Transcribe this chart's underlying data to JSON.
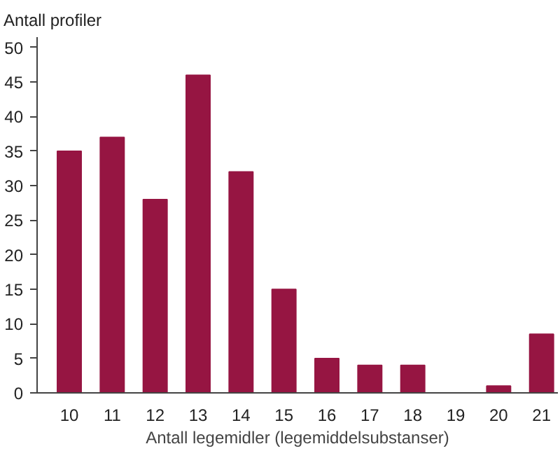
{
  "chart_data": {
    "type": "bar",
    "ylabel": "Antall profiler",
    "xlabel": "Antall legemidler (legemiddelsubstanser)",
    "categories": [
      "10",
      "11",
      "12",
      "13",
      "14",
      "15",
      "16",
      "17",
      "18",
      "19",
      "20",
      "21"
    ],
    "values": [
      35,
      37,
      28,
      46,
      32,
      15,
      5,
      4,
      4,
      0,
      1,
      8.5
    ],
    "color": "#961542",
    "ylim": [
      0,
      51.5
    ],
    "yticks": [
      0,
      5,
      10,
      15,
      20,
      25,
      30,
      35,
      40,
      45,
      50
    ],
    "grid": false
  }
}
